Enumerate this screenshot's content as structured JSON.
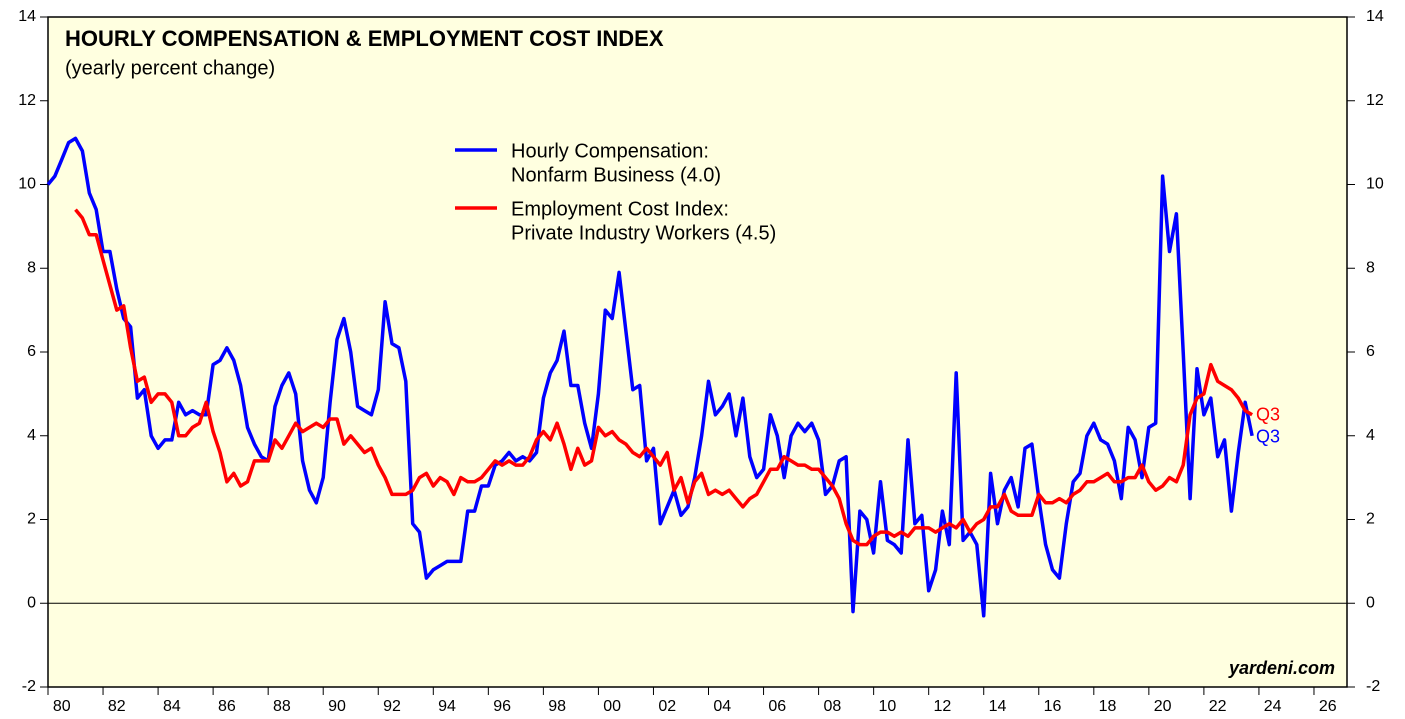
{
  "chart_data": {
    "type": "line",
    "title": "HOURLY COMPENSATION & EMPLOYMENT COST INDEX",
    "subtitle": "(yearly percent change)",
    "x": [
      1980,
      1980.25,
      1980.5,
      1980.75,
      1981,
      1981.25,
      1981.5,
      1981.75,
      1982,
      1982.25,
      1982.5,
      1982.75,
      1983,
      1983.25,
      1983.5,
      1983.75,
      1984,
      1984.25,
      1984.5,
      1984.75,
      1985,
      1985.25,
      1985.5,
      1985.75,
      1986,
      1986.25,
      1986.5,
      1986.75,
      1987,
      1987.25,
      1987.5,
      1987.75,
      1988,
      1988.25,
      1988.5,
      1988.75,
      1989,
      1989.25,
      1989.5,
      1989.75,
      1990,
      1990.25,
      1990.5,
      1990.75,
      1991,
      1991.25,
      1991.5,
      1991.75,
      1992,
      1992.25,
      1992.5,
      1992.75,
      1993,
      1993.25,
      1993.5,
      1993.75,
      1994,
      1994.25,
      1994.5,
      1994.75,
      1995,
      1995.25,
      1995.5,
      1995.75,
      1996,
      1996.25,
      1996.5,
      1996.75,
      1997,
      1997.25,
      1997.5,
      1997.75,
      1998,
      1998.25,
      1998.5,
      1998.75,
      1999,
      1999.25,
      1999.5,
      1999.75,
      2000,
      2000.25,
      2000.5,
      2000.75,
      2001,
      2001.25,
      2001.5,
      2001.75,
      2002,
      2002.25,
      2002.5,
      2002.75,
      2003,
      2003.25,
      2003.5,
      2003.75,
      2004,
      2004.25,
      2004.5,
      2004.75,
      2005,
      2005.25,
      2005.5,
      2005.75,
      2006,
      2006.25,
      2006.5,
      2006.75,
      2007,
      2007.25,
      2007.5,
      2007.75,
      2008,
      2008.25,
      2008.5,
      2008.75,
      2009,
      2009.25,
      2009.5,
      2009.75,
      2010,
      2010.25,
      2010.5,
      2010.75,
      2011,
      2011.25,
      2011.5,
      2011.75,
      2012,
      2012.25,
      2012.5,
      2012.75,
      2013,
      2013.25,
      2013.5,
      2013.75,
      2014,
      2014.25,
      2014.5,
      2014.75,
      2015,
      2015.25,
      2015.5,
      2015.75,
      2016,
      2016.25,
      2016.5,
      2016.75,
      2017,
      2017.25,
      2017.5,
      2017.75,
      2018,
      2018.25,
      2018.5,
      2018.75,
      2019,
      2019.25,
      2019.5,
      2019.75,
      2020,
      2020.25,
      2020.5,
      2020.75,
      2021,
      2021.25,
      2021.5,
      2021.75,
      2022,
      2022.25,
      2022.5,
      2022.75,
      2023,
      2023.25,
      2023.5,
      2023.75
    ],
    "series": [
      {
        "name": [
          "Hourly Compensation:",
          "Nonfarm Business (4.0)"
        ],
        "color": "#0000ff",
        "end_label": "Q3",
        "values": [
          10.0,
          10.2,
          10.6,
          11.0,
          11.1,
          10.8,
          9.8,
          9.4,
          8.4,
          8.4,
          7.5,
          6.8,
          6.6,
          4.9,
          5.1,
          4.0,
          3.7,
          3.9,
          3.9,
          4.8,
          4.5,
          4.6,
          4.5,
          4.5,
          5.7,
          5.8,
          6.1,
          5.8,
          5.2,
          4.2,
          3.8,
          3.5,
          3.4,
          4.7,
          5.2,
          5.5,
          5.0,
          3.4,
          2.7,
          2.4,
          3.0,
          4.8,
          6.3,
          6.8,
          6.0,
          4.7,
          4.6,
          4.5,
          5.1,
          7.2,
          6.2,
          6.1,
          5.3,
          1.9,
          1.7,
          0.6,
          0.8,
          0.9,
          1.0,
          1.0,
          1.0,
          2.2,
          2.2,
          2.8,
          2.8,
          3.3,
          3.4,
          3.6,
          3.4,
          3.5,
          3.4,
          3.6,
          4.9,
          5.5,
          5.8,
          6.5,
          5.2,
          5.2,
          4.3,
          3.7,
          5.0,
          7.0,
          6.8,
          7.9,
          6.5,
          5.1,
          5.2,
          3.4,
          3.7,
          1.9,
          2.3,
          2.7,
          2.1,
          2.3,
          3.0,
          4.0,
          5.3,
          4.5,
          4.7,
          5.0,
          4.0,
          4.9,
          3.5,
          3.0,
          3.2,
          4.5,
          4.0,
          3.0,
          4.0,
          4.3,
          4.1,
          4.3,
          3.9,
          2.6,
          2.8,
          3.4,
          3.5,
          -0.2,
          2.2,
          2.0,
          1.2,
          2.9,
          1.5,
          1.4,
          1.2,
          3.9,
          1.9,
          2.1,
          0.3,
          0.8,
          2.2,
          1.4,
          5.5,
          1.5,
          1.7,
          1.4,
          -0.3,
          3.1,
          1.9,
          2.7,
          3.0,
          2.3,
          3.7,
          3.8,
          2.5,
          1.4,
          0.8,
          0.6,
          1.9,
          2.9,
          3.1,
          4.0,
          4.3,
          3.9,
          3.8,
          3.4,
          2.5,
          4.2,
          3.9,
          3.0,
          4.2,
          4.3,
          10.2,
          8.4,
          9.3,
          6.0,
          2.5,
          5.6,
          4.5,
          4.9,
          3.5,
          3.9,
          2.2,
          3.6,
          4.8,
          4.0
        ]
      },
      {
        "name": [
          "Employment Cost Index:",
          "Private Industry Workers (4.5)"
        ],
        "color": "#ff0000",
        "end_label": "Q3",
        "values": [
          null,
          null,
          null,
          null,
          9.4,
          9.2,
          8.8,
          8.8,
          8.2,
          7.6,
          7.0,
          7.1,
          6.1,
          5.3,
          5.4,
          4.8,
          5.0,
          5.0,
          4.8,
          4.0,
          4.0,
          4.2,
          4.3,
          4.8,
          4.1,
          3.6,
          2.9,
          3.1,
          2.8,
          2.9,
          3.4,
          3.4,
          3.4,
          3.9,
          3.7,
          4.0,
          4.3,
          4.1,
          4.2,
          4.3,
          4.2,
          4.4,
          4.4,
          3.8,
          4.0,
          3.8,
          3.6,
          3.7,
          3.3,
          3.0,
          2.6,
          2.6,
          2.6,
          2.7,
          3.0,
          3.1,
          2.8,
          3.0,
          2.9,
          2.6,
          3.0,
          2.9,
          2.9,
          3.0,
          3.2,
          3.4,
          3.3,
          3.4,
          3.3,
          3.3,
          3.5,
          3.9,
          4.1,
          3.9,
          4.3,
          3.8,
          3.2,
          3.7,
          3.3,
          3.4,
          4.2,
          4.0,
          4.1,
          3.9,
          3.8,
          3.6,
          3.5,
          3.7,
          3.5,
          3.3,
          3.6,
          2.7,
          3.0,
          2.4,
          2.9,
          3.1,
          2.6,
          2.7,
          2.6,
          2.7,
          2.5,
          2.3,
          2.5,
          2.6,
          2.9,
          3.2,
          3.2,
          3.5,
          3.4,
          3.3,
          3.3,
          3.2,
          3.2,
          3.0,
          2.8,
          2.5,
          1.9,
          1.5,
          1.4,
          1.4,
          1.6,
          1.7,
          1.7,
          1.6,
          1.7,
          1.6,
          1.8,
          1.8,
          1.8,
          1.7,
          1.8,
          1.9,
          1.8,
          2.0,
          1.7,
          1.9,
          2.0,
          2.3,
          2.3,
          2.6,
          2.2,
          2.1,
          2.1,
          2.1,
          2.6,
          2.4,
          2.4,
          2.5,
          2.4,
          2.6,
          2.7,
          2.9,
          2.9,
          3.0,
          3.1,
          2.9,
          2.9,
          3.0,
          3.0,
          3.3,
          2.9,
          2.7,
          2.8,
          3.0,
          2.9,
          3.3,
          4.5,
          4.9,
          5.0,
          5.7,
          5.3,
          5.2,
          5.1,
          4.9,
          4.6,
          4.5
        ]
      }
    ],
    "xlim": [
      1980,
      2027.2
    ],
    "xticks": [
      {
        "value": 1980,
        "label": "80"
      },
      {
        "value": 1982,
        "label": "82"
      },
      {
        "value": 1984,
        "label": "84"
      },
      {
        "value": 1986,
        "label": "86"
      },
      {
        "value": 1988,
        "label": "88"
      },
      {
        "value": 1990,
        "label": "90"
      },
      {
        "value": 1992,
        "label": "92"
      },
      {
        "value": 1994,
        "label": "94"
      },
      {
        "value": 1996,
        "label": "96"
      },
      {
        "value": 1998,
        "label": "98"
      },
      {
        "value": 2000,
        "label": "00"
      },
      {
        "value": 2002,
        "label": "02"
      },
      {
        "value": 2004,
        "label": "04"
      },
      {
        "value": 2006,
        "label": "06"
      },
      {
        "value": 2008,
        "label": "08"
      },
      {
        "value": 2010,
        "label": "10"
      },
      {
        "value": 2012,
        "label": "12"
      },
      {
        "value": 2014,
        "label": "14"
      },
      {
        "value": 2016,
        "label": "16"
      },
      {
        "value": 2018,
        "label": "18"
      },
      {
        "value": 2020,
        "label": "20"
      },
      {
        "value": 2022,
        "label": "22"
      },
      {
        "value": 2024,
        "label": "24"
      },
      {
        "value": 2026,
        "label": "26"
      }
    ],
    "ylim": [
      -2,
      14
    ],
    "yticks": [
      -2,
      0,
      2,
      4,
      6,
      8,
      10,
      12,
      14
    ],
    "y2lim": [
      -2,
      14
    ],
    "y2ticks": [
      -2,
      0,
      2,
      4,
      6,
      8,
      10,
      12,
      14
    ],
    "source": "yardeni.com"
  }
}
